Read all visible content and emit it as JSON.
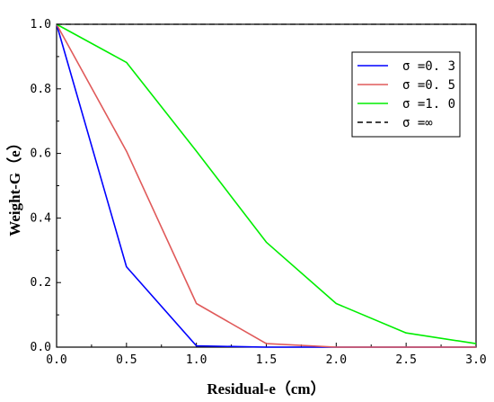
{
  "chart_data": {
    "type": "line",
    "xlabel": "Residual-e（cm）",
    "ylabel": "Weight-G（e）",
    "xlim": [
      0,
      3.0
    ],
    "ylim": [
      0,
      1.0
    ],
    "x_ticks": [
      "0.0",
      "0.5",
      "1.0",
      "1.5",
      "2.0",
      "2.5",
      "3.0"
    ],
    "y_ticks": [
      "0.0",
      "0.2",
      "0.4",
      "0.6",
      "0.8",
      "1.0"
    ],
    "grid": false,
    "legend_position": "top-right",
    "series": [
      {
        "name": "σ =0. 3",
        "color": "#0000ff",
        "dash": "solid",
        "x": [
          0,
          0.5,
          1.0,
          1.5,
          2.0,
          2.5,
          3.0
        ],
        "y": [
          1.0,
          0.249,
          0.004,
          0.0,
          0.0,
          0.0,
          0.0
        ]
      },
      {
        "name": "σ =0. 5",
        "color": "#e05a5a",
        "dash": "solid",
        "x": [
          0,
          0.5,
          1.0,
          1.5,
          2.0,
          2.5,
          3.0
        ],
        "y": [
          1.0,
          0.607,
          0.135,
          0.011,
          0.0,
          0.0,
          0.0
        ]
      },
      {
        "name": "σ =1. 0",
        "color": "#00ee00",
        "dash": "solid",
        "x": [
          0,
          0.5,
          1.0,
          1.5,
          2.0,
          2.5,
          3.0
        ],
        "y": [
          1.0,
          0.882,
          0.607,
          0.325,
          0.135,
          0.044,
          0.011
        ]
      },
      {
        "name": "σ =∞",
        "color": "#000000",
        "dash": "dashed",
        "x": [
          0,
          3.0
        ],
        "y": [
          1.0,
          1.0
        ]
      }
    ]
  }
}
